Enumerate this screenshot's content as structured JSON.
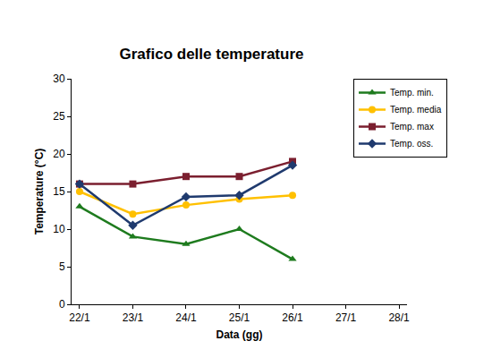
{
  "chart_data": {
    "type": "line",
    "title": "Grafico delle temperature",
    "x_label": "Data (gg)",
    "y_label": "Temperature (°C)",
    "categories": [
      "22/1",
      "23/1",
      "24/1",
      "25/1",
      "26/1",
      "27/1",
      "28/1"
    ],
    "series": [
      {
        "name": "Temp. min.",
        "color": "#1e7b1e",
        "marker": "triangle",
        "values": [
          13,
          9,
          8,
          10,
          6,
          null,
          null
        ]
      },
      {
        "name": "Temp. media",
        "color": "#ffc000",
        "marker": "circle",
        "values": [
          15,
          12,
          13.2,
          14,
          14.5,
          null,
          null
        ]
      },
      {
        "name": "Temp. max",
        "color": "#7b1f2f",
        "marker": "square",
        "values": [
          16,
          16,
          17,
          17,
          19,
          null,
          null
        ]
      },
      {
        "name": "Temp. oss.",
        "color": "#1f3a6e",
        "marker": "diamond",
        "values": [
          16,
          10.5,
          14.3,
          14.5,
          18.5,
          null,
          null
        ]
      }
    ],
    "ylim": [
      0,
      30
    ],
    "yticks": [
      0,
      5,
      10,
      15,
      20,
      25,
      30
    ],
    "grid": false,
    "legend": "top right"
  }
}
